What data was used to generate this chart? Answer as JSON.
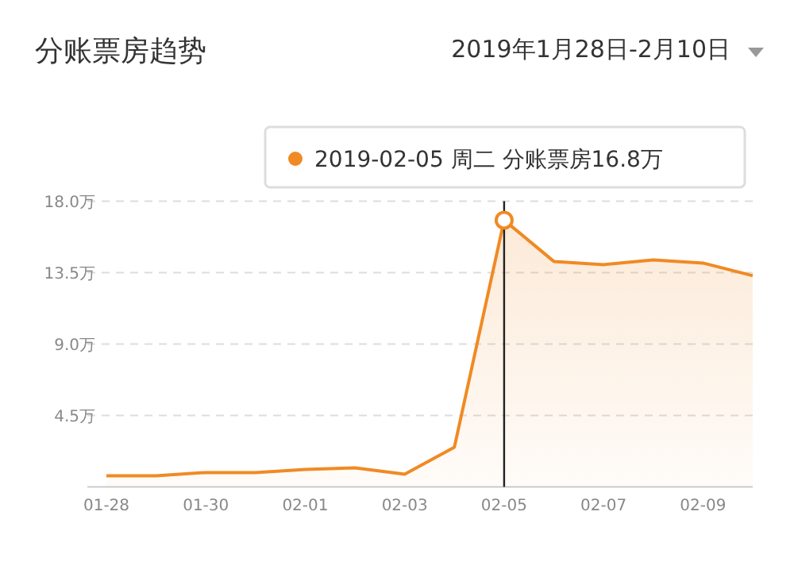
{
  "chart_data": {
    "type": "area",
    "title": "分账票房趋势",
    "subtitle": "2019年1月28日-2月10日",
    "categories": [
      "01-28",
      null,
      "01-30",
      null,
      "02-01",
      null,
      "02-03",
      null,
      "02-05",
      null,
      "02-07",
      null,
      "02-09",
      null
    ],
    "series": [
      {
        "color": "#f08a24",
        "values": [
          0.7,
          0.7,
          0.9,
          0.9,
          1.1,
          1.2,
          0.8,
          2.5,
          16.8,
          14.2,
          14.0,
          14.3,
          14.1,
          13.3
        ]
      }
    ],
    "ylim": [
      0,
      18
    ],
    "yticks": [
      {
        "value": 0,
        "label": null
      },
      {
        "value": 4.5,
        "label": "4.5万"
      },
      {
        "value": 9,
        "label": "9.0万"
      },
      {
        "value": 13.5,
        "label": "13.5万"
      },
      {
        "value": 18,
        "label": "18.0万"
      }
    ],
    "grid": "y",
    "annotations": [
      {
        "text": "2019-02-05 周二 分账票房16.8万",
        "x": "02-05",
        "y": 16.8
      }
    ]
  }
}
